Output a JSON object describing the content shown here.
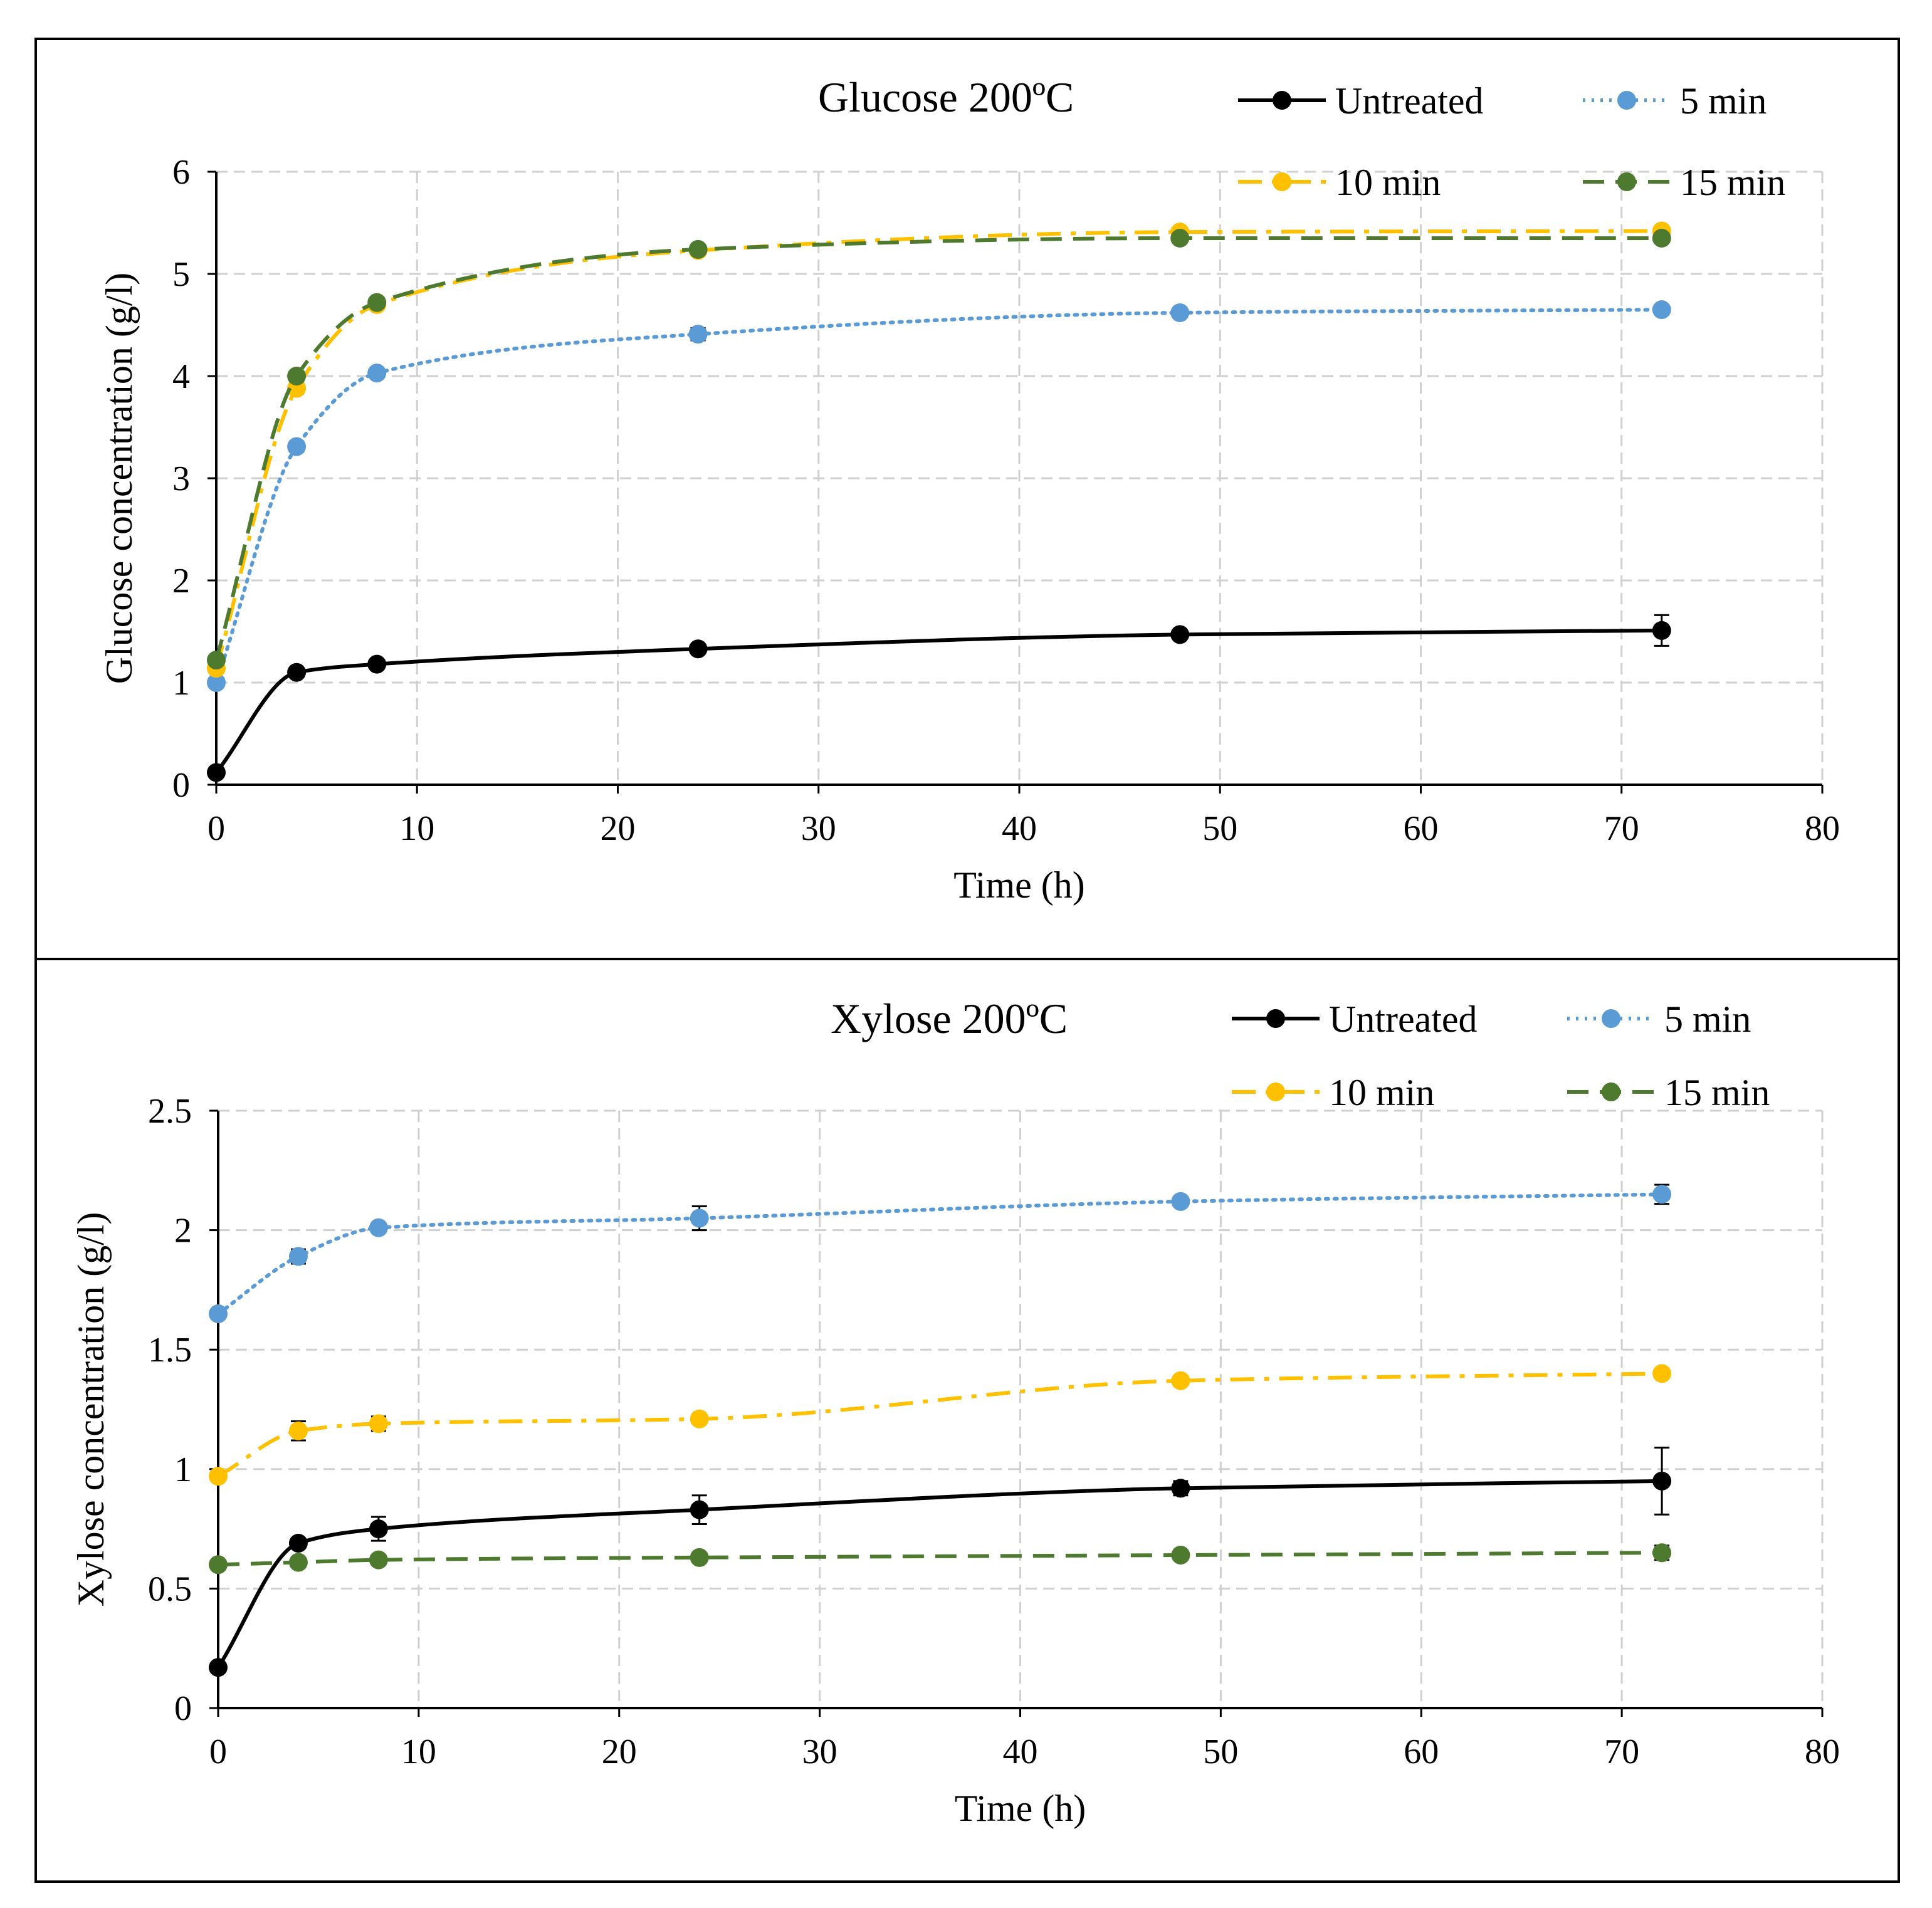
{
  "chart_data": [
    {
      "type": "line",
      "title": "Glucose 200ºC",
      "xlabel": "Time (h)",
      "ylabel": "Glucose concentration (g/l)",
      "xlim": [
        0,
        80
      ],
      "ylim": [
        0,
        6
      ],
      "x_ticks": [
        "0",
        "10",
        "20",
        "30",
        "40",
        "50",
        "60",
        "70",
        "80"
      ],
      "y_ticks": [
        "0",
        "1",
        "2",
        "3",
        "4",
        "5",
        "6"
      ],
      "grid": true,
      "x": [
        0,
        4,
        8,
        24,
        48,
        72
      ],
      "series": [
        {
          "name": "Untreated",
          "color": "#000000",
          "style": "solid",
          "values": [
            0.12,
            1.1,
            1.18,
            1.33,
            1.47,
            1.51
          ],
          "errors": [
            0,
            0.03,
            0.03,
            0.03,
            0.03,
            0.15
          ]
        },
        {
          "name": "5 min",
          "color": "#5B9BD5",
          "style": "dotted",
          "values": [
            1.0,
            3.31,
            4.03,
            4.41,
            4.62,
            4.65
          ],
          "errors": [
            0,
            0.05,
            0.04,
            0.06,
            0.03,
            0.04
          ]
        },
        {
          "name": "10 min",
          "color": "#FFC000",
          "style": "dashdot",
          "values": [
            1.14,
            3.88,
            4.7,
            5.23,
            5.41,
            5.42
          ],
          "errors": [
            0,
            0.05,
            0.04,
            0.03,
            0.03,
            0.03
          ]
        },
        {
          "name": "15 min",
          "color": "#4E7A2F",
          "style": "dashed",
          "values": [
            1.22,
            4.0,
            4.72,
            5.24,
            5.35,
            5.35
          ],
          "errors": [
            0,
            0.03,
            0.03,
            0.03,
            0.03,
            0.03
          ]
        }
      ]
    },
    {
      "type": "line",
      "title": "Xylose 200ºC",
      "xlabel": "Time (h)",
      "ylabel": "Xylose concentration (g/l)",
      "xlim": [
        0,
        80
      ],
      "ylim": [
        0,
        2.5
      ],
      "x_ticks": [
        "0",
        "10",
        "20",
        "30",
        "40",
        "50",
        "60",
        "70",
        "80"
      ],
      "y_ticks": [
        "0",
        "0.5",
        "1",
        "1.5",
        "2",
        "2.5"
      ],
      "grid": true,
      "x": [
        0,
        4,
        8,
        24,
        48,
        72
      ],
      "series": [
        {
          "name": "Untreated",
          "color": "#000000",
          "style": "solid",
          "values": [
            0.17,
            0.69,
            0.75,
            0.83,
            0.92,
            0.95
          ],
          "errors": [
            0,
            0.02,
            0.05,
            0.06,
            0.03,
            0.14
          ]
        },
        {
          "name": "5 min",
          "color": "#5B9BD5",
          "style": "dotted",
          "values": [
            1.65,
            1.89,
            2.01,
            2.05,
            2.12,
            2.15
          ],
          "errors": [
            0,
            0.03,
            0.02,
            0.05,
            0.02,
            0.04
          ]
        },
        {
          "name": "10 min",
          "color": "#FFC000",
          "style": "dashdot",
          "values": [
            0.97,
            1.16,
            1.19,
            1.21,
            1.37,
            1.4
          ],
          "errors": [
            0,
            0.04,
            0.03,
            0.02,
            0.02,
            0.02
          ]
        },
        {
          "name": "15 min",
          "color": "#4E7A2F",
          "style": "dashed",
          "values": [
            0.6,
            0.61,
            0.62,
            0.63,
            0.64,
            0.65
          ],
          "errors": [
            0,
            0.02,
            0.02,
            0.02,
            0.02,
            0.03
          ]
        }
      ]
    }
  ]
}
